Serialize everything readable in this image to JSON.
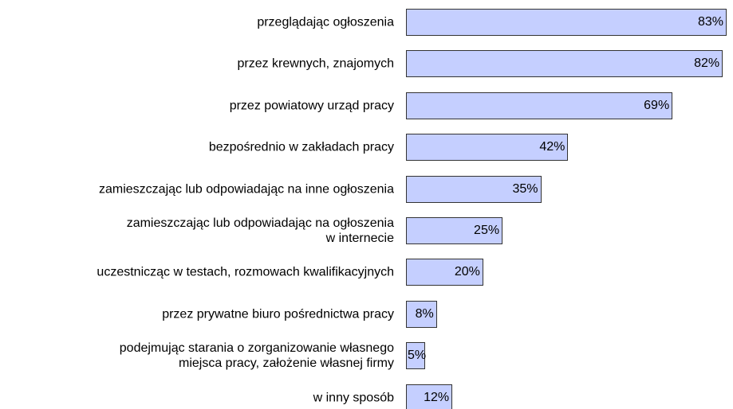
{
  "chart_data": {
    "type": "bar",
    "orientation": "horizontal",
    "categories": [
      "przeglądając ogłoszenia",
      "przez krewnych, znajomych",
      "przez powiatowy urząd pracy",
      "bezpośrednio w zakładach pracy",
      "zamieszczając lub odpowiadając na inne ogłoszenia",
      "zamieszczając lub odpowiadając na ogłoszenia\nw internecie",
      "uczestnicząc w testach, rozmowach kwalifikacyjnych",
      "przez prywatne biuro pośrednictwa pracy",
      "podejmując starania o zorganizowanie własnego\nmiejsca pracy, założenie własnej firmy",
      "w inny sposób"
    ],
    "values": [
      83,
      82,
      69,
      42,
      35,
      25,
      20,
      8,
      5,
      12
    ],
    "value_labels": [
      "83%",
      "82%",
      "69%",
      "42%",
      "35%",
      "25%",
      "20%",
      "8%",
      "5%",
      "12%"
    ],
    "color": "#c5cfff"
  }
}
